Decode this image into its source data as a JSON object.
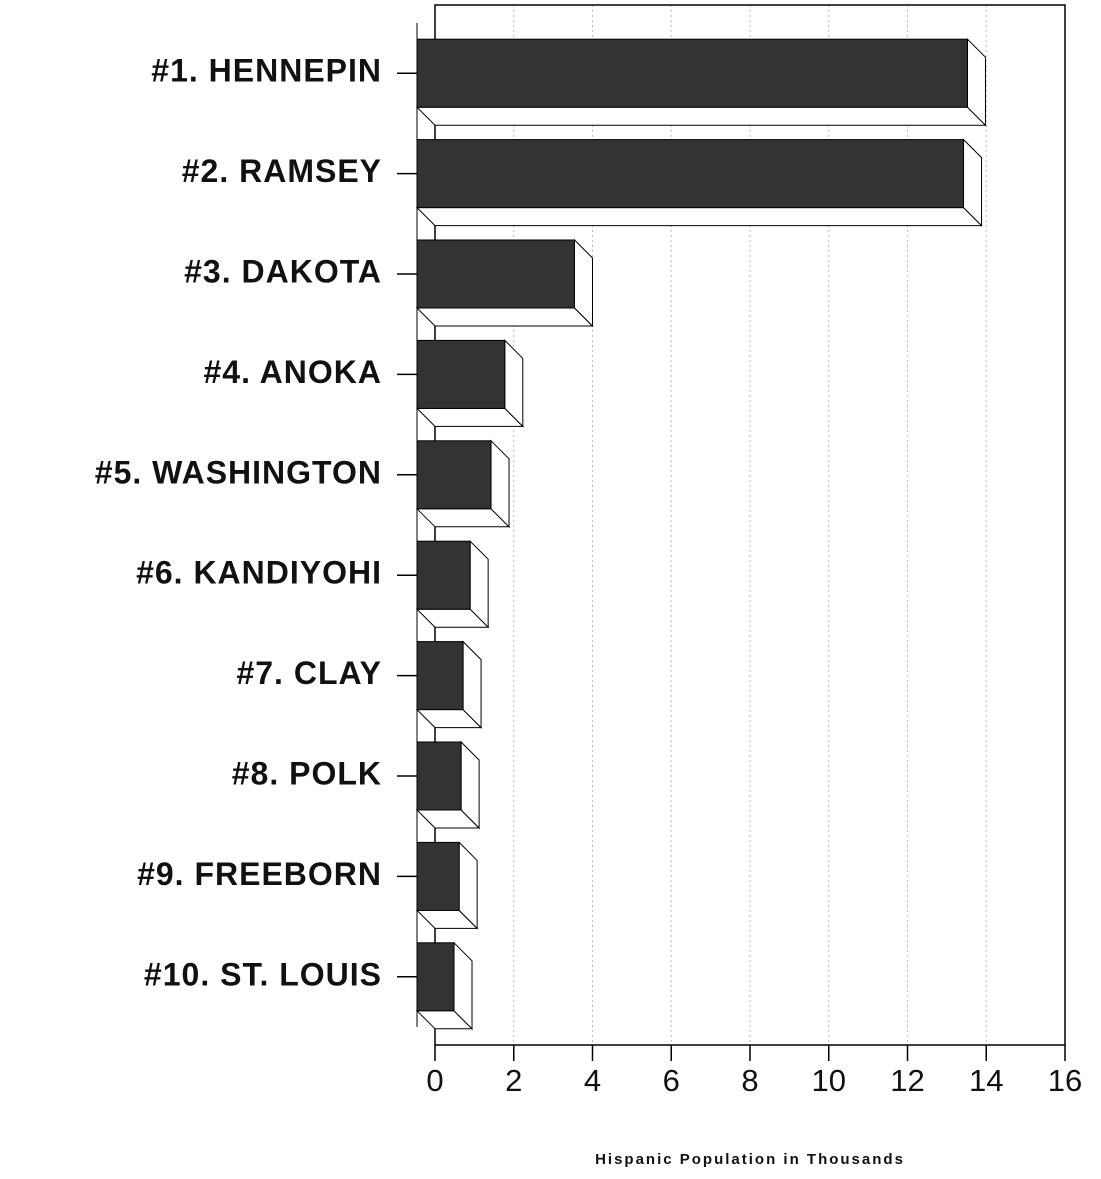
{
  "chart_data": {
    "type": "bar",
    "orientation": "horizontal",
    "x_label": "Hispanic Population in Thousands",
    "categories": [
      "#1. HENNEPIN",
      "#2. RAMSEY",
      "#3. DAKOTA",
      "#4. ANOKA",
      "#5. WASHINGTON",
      "#6. KANDIYOHI",
      "#7. CLAY",
      "#8. POLK",
      "#9. FREEBORN",
      "#10. ST. LOUIS"
    ],
    "values": [
      13.98,
      13.88,
      4.0,
      2.23,
      1.88,
      1.35,
      1.17,
      1.12,
      1.07,
      0.94
    ],
    "color": "#333333",
    "xlim": [
      0,
      16
    ],
    "xticks": [
      0,
      2,
      4,
      6,
      8,
      10,
      12,
      14,
      16
    ],
    "grid": true
  }
}
